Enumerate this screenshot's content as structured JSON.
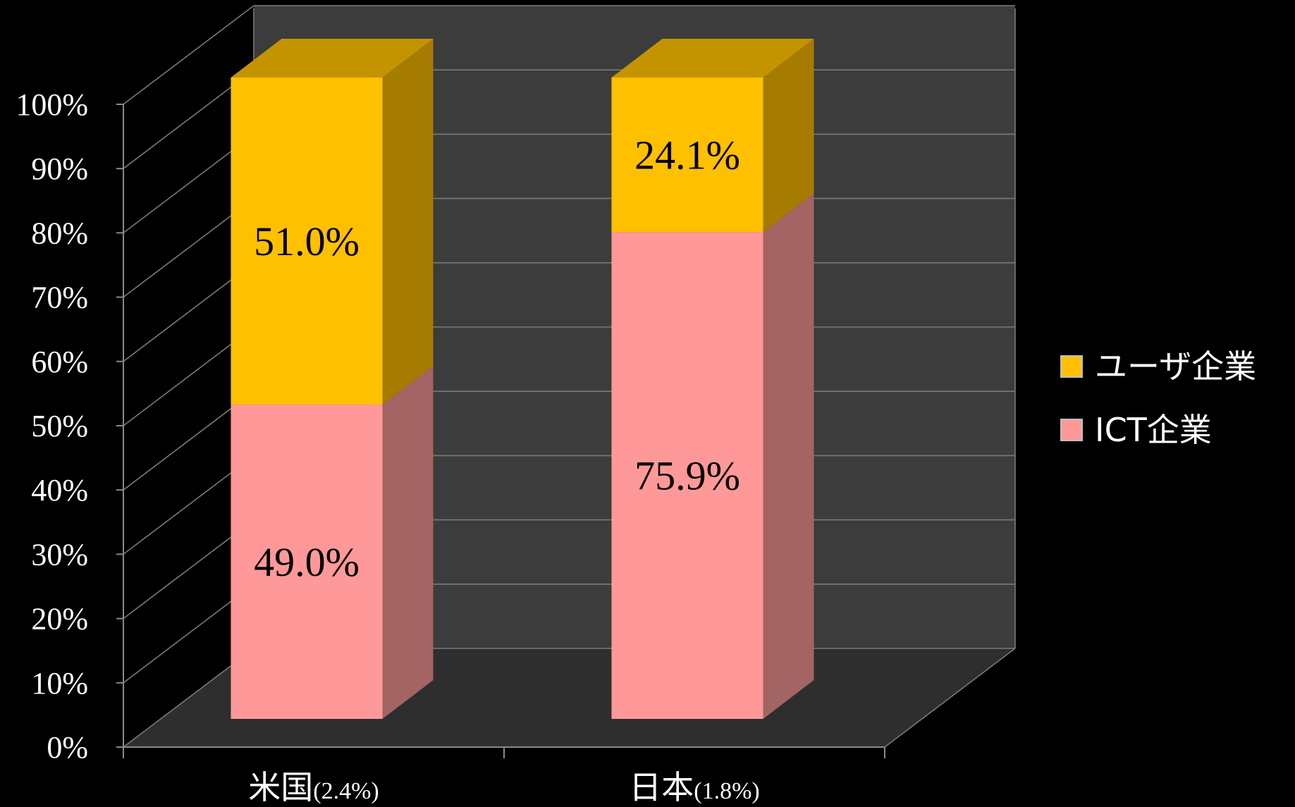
{
  "chart_data": {
    "type": "bar",
    "stacked": true,
    "three_d": true,
    "categories": [
      {
        "name": "米国",
        "note": "(2.4%)"
      },
      {
        "name": "日本",
        "note": "(1.8%)"
      }
    ],
    "series": [
      {
        "name": "ICT企業",
        "values": [
          49.0,
          75.9
        ],
        "labels": [
          "49.0%",
          "75.9%"
        ],
        "color": "#FF9999",
        "side_color": "#A36464"
      },
      {
        "name": "ユーザ企業",
        "values": [
          51.0,
          24.1
        ],
        "labels": [
          "51.0%",
          "24.1%"
        ],
        "color": "#FFC000",
        "side_color": "#A67C00",
        "top_color": "#C49400"
      }
    ],
    "yticks": [
      "0%",
      "10%",
      "20%",
      "30%",
      "40%",
      "50%",
      "60%",
      "70%",
      "80%",
      "90%",
      "100%"
    ],
    "ylim": [
      0,
      100
    ],
    "grid": true,
    "legend_position": "right",
    "legend_order": [
      "ユーザ企業",
      "ICT企業"
    ],
    "background": "#000000",
    "wall_color": "#3C3C3C",
    "floor_color": "#2E2E2E",
    "gridline_color": "#7A7A7A"
  }
}
